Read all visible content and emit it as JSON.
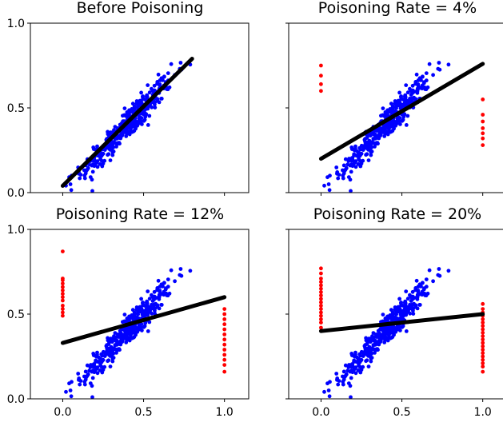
{
  "chart_data": [
    {
      "type": "scatter",
      "title": "Before Poisoning",
      "xlim": [
        -0.2,
        1.15
      ],
      "ylim": [
        0.0,
        1.0
      ],
      "xticks": [
        0.0,
        0.5,
        1.0
      ],
      "yticks": [
        0.0,
        0.5,
        1.0
      ],
      "xticklabels": [
        "",
        "",
        ""
      ],
      "yticklabels": [
        "0.0",
        "0.5",
        "1.0"
      ],
      "grid": false,
      "clean_color": "#0000ff",
      "poison_color": "#ff0000",
      "fit_color": "#000000",
      "clean_points": {
        "count": 400,
        "x_range": [
          0.02,
          0.8
        ],
        "trend": [
          0.02,
          0.8
        ],
        "spread": 0.045
      },
      "poison_points": [],
      "fit_line": {
        "x": [
          0.0,
          0.8
        ],
        "y": [
          0.04,
          0.79
        ]
      }
    },
    {
      "type": "scatter",
      "title": "Poisoning Rate = 4%",
      "xlim": [
        -0.2,
        1.15
      ],
      "ylim": [
        0.0,
        1.0
      ],
      "xticks": [
        0.0,
        0.5,
        1.0
      ],
      "yticks": [
        0.0,
        0.5,
        1.0
      ],
      "xticklabels": [
        "",
        "",
        ""
      ],
      "yticklabels": [
        "",
        "",
        ""
      ],
      "grid": false,
      "clean_color": "#0000ff",
      "poison_color": "#ff0000",
      "fit_color": "#000000",
      "clean_points": {
        "count": 400,
        "x_range": [
          0.02,
          0.8
        ],
        "trend": [
          0.02,
          0.8
        ],
        "spread": 0.045
      },
      "poison_points": [
        {
          "x": 0.0,
          "y": 0.6
        },
        {
          "x": 0.0,
          "y": 0.64
        },
        {
          "x": 0.0,
          "y": 0.69
        },
        {
          "x": 0.0,
          "y": 0.75
        },
        {
          "x": 1.0,
          "y": 0.28
        },
        {
          "x": 1.0,
          "y": 0.32
        },
        {
          "x": 1.0,
          "y": 0.35
        },
        {
          "x": 1.0,
          "y": 0.38
        },
        {
          "x": 1.0,
          "y": 0.42
        },
        {
          "x": 1.0,
          "y": 0.46
        },
        {
          "x": 1.0,
          "y": 0.55
        }
      ],
      "fit_line": {
        "x": [
          0.0,
          1.0
        ],
        "y": [
          0.2,
          0.76
        ]
      }
    },
    {
      "type": "scatter",
      "title": "Poisoning Rate = 12%",
      "xlim": [
        -0.2,
        1.15
      ],
      "ylim": [
        0.0,
        1.0
      ],
      "xticks": [
        0.0,
        0.5,
        1.0
      ],
      "yticks": [
        0.0,
        0.5,
        1.0
      ],
      "xticklabels": [
        "0.0",
        "0.5",
        "1.0"
      ],
      "yticklabels": [
        "0.0",
        "0.5",
        "1.0"
      ],
      "grid": false,
      "clean_color": "#0000ff",
      "poison_color": "#ff0000",
      "fit_color": "#000000",
      "clean_points": {
        "count": 400,
        "x_range": [
          0.02,
          0.8
        ],
        "trend": [
          0.02,
          0.8
        ],
        "spread": 0.045
      },
      "poison_points": [
        {
          "x": 0.0,
          "y": 0.49
        },
        {
          "x": 0.0,
          "y": 0.51
        },
        {
          "x": 0.0,
          "y": 0.53
        },
        {
          "x": 0.0,
          "y": 0.55
        },
        {
          "x": 0.0,
          "y": 0.58
        },
        {
          "x": 0.0,
          "y": 0.6
        },
        {
          "x": 0.0,
          "y": 0.62
        },
        {
          "x": 0.0,
          "y": 0.64
        },
        {
          "x": 0.0,
          "y": 0.66
        },
        {
          "x": 0.0,
          "y": 0.68
        },
        {
          "x": 0.0,
          "y": 0.7
        },
        {
          "x": 0.0,
          "y": 0.71
        },
        {
          "x": 0.0,
          "y": 0.87
        },
        {
          "x": 1.0,
          "y": 0.16
        },
        {
          "x": 1.0,
          "y": 0.2
        },
        {
          "x": 1.0,
          "y": 0.23
        },
        {
          "x": 1.0,
          "y": 0.26
        },
        {
          "x": 1.0,
          "y": 0.29
        },
        {
          "x": 1.0,
          "y": 0.32
        },
        {
          "x": 1.0,
          "y": 0.35
        },
        {
          "x": 1.0,
          "y": 0.38
        },
        {
          "x": 1.0,
          "y": 0.41
        },
        {
          "x": 1.0,
          "y": 0.44
        },
        {
          "x": 1.0,
          "y": 0.47
        },
        {
          "x": 1.0,
          "y": 0.5
        },
        {
          "x": 1.0,
          "y": 0.53
        }
      ],
      "fit_line": {
        "x": [
          0.0,
          1.0
        ],
        "y": [
          0.33,
          0.6
        ]
      }
    },
    {
      "type": "scatter",
      "title": "Poisoning Rate = 20%",
      "xlim": [
        -0.2,
        1.15
      ],
      "ylim": [
        0.0,
        1.0
      ],
      "xticks": [
        0.0,
        0.5,
        1.0
      ],
      "yticks": [
        0.0,
        0.5,
        1.0
      ],
      "xticklabels": [
        "0.0",
        "0.5",
        "1.0"
      ],
      "yticklabels": [
        "",
        "",
        ""
      ],
      "grid": false,
      "clean_color": "#0000ff",
      "poison_color": "#ff0000",
      "fit_color": "#000000",
      "clean_points": {
        "count": 400,
        "x_range": [
          0.02,
          0.8
        ],
        "trend": [
          0.02,
          0.8
        ],
        "spread": 0.045
      },
      "poison_points": [
        {
          "x": 0.0,
          "y": 0.42
        },
        {
          "x": 0.0,
          "y": 0.45
        },
        {
          "x": 0.0,
          "y": 0.47
        },
        {
          "x": 0.0,
          "y": 0.49
        },
        {
          "x": 0.0,
          "y": 0.51
        },
        {
          "x": 0.0,
          "y": 0.53
        },
        {
          "x": 0.0,
          "y": 0.55
        },
        {
          "x": 0.0,
          "y": 0.57
        },
        {
          "x": 0.0,
          "y": 0.59
        },
        {
          "x": 0.0,
          "y": 0.61
        },
        {
          "x": 0.0,
          "y": 0.63
        },
        {
          "x": 0.0,
          "y": 0.65
        },
        {
          "x": 0.0,
          "y": 0.67
        },
        {
          "x": 0.0,
          "y": 0.69
        },
        {
          "x": 0.0,
          "y": 0.71
        },
        {
          "x": 0.0,
          "y": 0.74
        },
        {
          "x": 0.0,
          "y": 0.77
        },
        {
          "x": 1.0,
          "y": 0.16
        },
        {
          "x": 1.0,
          "y": 0.19
        },
        {
          "x": 1.0,
          "y": 0.21
        },
        {
          "x": 1.0,
          "y": 0.23
        },
        {
          "x": 1.0,
          "y": 0.25
        },
        {
          "x": 1.0,
          "y": 0.27
        },
        {
          "x": 1.0,
          "y": 0.29
        },
        {
          "x": 1.0,
          "y": 0.31
        },
        {
          "x": 1.0,
          "y": 0.33
        },
        {
          "x": 1.0,
          "y": 0.35
        },
        {
          "x": 1.0,
          "y": 0.37
        },
        {
          "x": 1.0,
          "y": 0.39
        },
        {
          "x": 1.0,
          "y": 0.41
        },
        {
          "x": 1.0,
          "y": 0.43
        },
        {
          "x": 1.0,
          "y": 0.45
        },
        {
          "x": 1.0,
          "y": 0.47
        },
        {
          "x": 1.0,
          "y": 0.49
        },
        {
          "x": 1.0,
          "y": 0.51
        },
        {
          "x": 1.0,
          "y": 0.53
        },
        {
          "x": 1.0,
          "y": 0.56
        }
      ],
      "fit_line": {
        "x": [
          0.0,
          1.0
        ],
        "y": [
          0.4,
          0.5
        ]
      }
    }
  ]
}
